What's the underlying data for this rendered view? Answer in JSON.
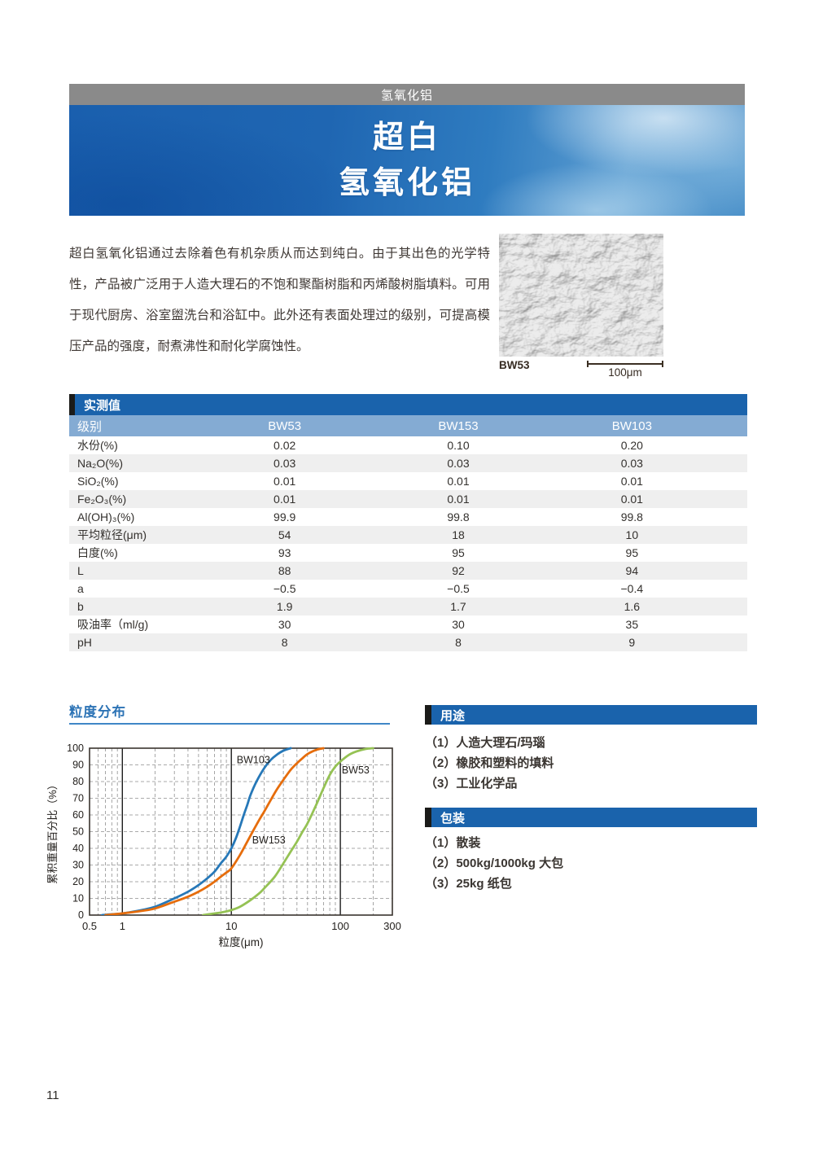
{
  "page": {
    "number": "11"
  },
  "colors": {
    "section_bar_blue": "#1a63ac",
    "grade_row_blue": "#84abd3",
    "tag_bar_gray": "#8a8a8a",
    "banner_blue": "#1f66b2",
    "title_blue": "#2c73b5",
    "row_stripe": "#efefef"
  },
  "header": {
    "tag": "氢氧化铝",
    "title_line1": "超白",
    "title_line2": "氢氧化铝"
  },
  "intro": {
    "paragraph": "超白氢氧化铝通过去除着色有机杂质从而达到纯白。由于其出色的光学特性，产品被广泛用于人造大理石的不饱和聚酯树脂和丙烯酸树脂填料。可用于现代厨房、浴室盥洗台和浴缸中。此外还有表面处理过的级别，可提高模压产品的强度，耐煮沸性和耐化学腐蚀性。",
    "figure": {
      "label": "BW53",
      "scale": "100μm"
    }
  },
  "table": {
    "title": "实测值",
    "grade_label": "级别",
    "columns": [
      "BW53",
      "BW153",
      "BW103"
    ],
    "rows": [
      {
        "label": "水份(%)",
        "values": [
          "0.02",
          "0.10",
          "0.20"
        ]
      },
      {
        "label": "Na₂O(%)",
        "values": [
          "0.03",
          "0.03",
          "0.03"
        ]
      },
      {
        "label": "SiO₂(%)",
        "values": [
          "0.01",
          "0.01",
          "0.01"
        ]
      },
      {
        "label": "Fe₂O₃(%)",
        "values": [
          "0.01",
          "0.01",
          "0.01"
        ]
      },
      {
        "label": "Al(OH)₃(%)",
        "values": [
          "99.9",
          "99.8",
          "99.8"
        ]
      },
      {
        "label": "平均粒径(μm)",
        "values": [
          "54",
          "18",
          "10"
        ]
      },
      {
        "label": "白度(%)",
        "values": [
          "93",
          "95",
          "95"
        ]
      },
      {
        "label": "L",
        "values": [
          "88",
          "92",
          "94"
        ]
      },
      {
        "label": "a",
        "values": [
          "−0.5",
          "−0.5",
          "−0.4"
        ]
      },
      {
        "label": "b",
        "values": [
          "1.9",
          "1.7",
          "1.6"
        ]
      },
      {
        "label": "吸油率（ml/g)",
        "values": [
          "30",
          "30",
          "35"
        ]
      },
      {
        "label": "pH",
        "values": [
          "8",
          "8",
          "9"
        ]
      }
    ]
  },
  "sections": {
    "distribution_title": "粒度分布",
    "uses": {
      "title": "用途",
      "items": [
        "（1）人造大理石/玛瑙",
        "（2）橡胶和塑料的填料",
        "（3）工业化学品"
      ]
    },
    "packaging": {
      "title": "包装",
      "items": [
        "（1）散装",
        "（2）500kg/1000kg 大包",
        "（3）25kg 纸包"
      ]
    }
  },
  "chart_data": {
    "type": "line",
    "title": "粒度分布",
    "xlabel": "粒度(μm)",
    "ylabel": "累积重量百分比（%）",
    "x_scale": "log",
    "xlim": [
      0.5,
      300
    ],
    "ylim": [
      0,
      100
    ],
    "x_major_ticks": [
      0.5,
      1,
      10,
      100,
      300
    ],
    "x_solid_gridlines": [
      1,
      10,
      100
    ],
    "y_ticks": [
      0,
      10,
      20,
      30,
      40,
      50,
      60,
      70,
      80,
      90,
      100
    ],
    "grid": "log minor dashed verticals + dashed horizontals every 10",
    "legend_position": "inline-labels",
    "series": [
      {
        "name": "BW103",
        "color": "#2678b8",
        "label_at": {
          "x": 11.2,
          "y": 91
        },
        "points": [
          [
            0.65,
            0
          ],
          [
            0.8,
            0.5
          ],
          [
            1,
            1
          ],
          [
            1.5,
            3
          ],
          [
            2,
            5
          ],
          [
            3,
            10
          ],
          [
            4,
            14
          ],
          [
            5,
            18
          ],
          [
            6,
            22
          ],
          [
            7,
            26
          ],
          [
            8,
            31
          ],
          [
            9,
            35
          ],
          [
            10,
            40
          ],
          [
            11,
            46
          ],
          [
            12,
            53
          ],
          [
            13,
            60
          ],
          [
            14,
            66
          ],
          [
            15,
            72
          ],
          [
            17,
            80
          ],
          [
            20,
            88
          ],
          [
            23,
            93
          ],
          [
            26,
            96
          ],
          [
            30,
            98.5
          ],
          [
            35,
            100
          ]
        ]
      },
      {
        "name": "BW153",
        "color": "#e66d0c",
        "label_at": {
          "x": 15.5,
          "y": 43
        },
        "points": [
          [
            0.7,
            0
          ],
          [
            1,
            1
          ],
          [
            1.5,
            2.5
          ],
          [
            2,
            4
          ],
          [
            3,
            8
          ],
          [
            4,
            11
          ],
          [
            5,
            14
          ],
          [
            6,
            17
          ],
          [
            7,
            20
          ],
          [
            8,
            23
          ],
          [
            9,
            25.5
          ],
          [
            10,
            28
          ],
          [
            12,
            36
          ],
          [
            14,
            44
          ],
          [
            16,
            51
          ],
          [
            18,
            57
          ],
          [
            20,
            62
          ],
          [
            23,
            69
          ],
          [
            26,
            75
          ],
          [
            30,
            81
          ],
          [
            35,
            87
          ],
          [
            40,
            91
          ],
          [
            45,
            94
          ],
          [
            50,
            96.5
          ],
          [
            60,
            99
          ],
          [
            70,
            100
          ]
        ]
      },
      {
        "name": "BW53",
        "color": "#95c254",
        "label_at": {
          "x": 103,
          "y": 85
        },
        "points": [
          [
            5.5,
            0
          ],
          [
            7,
            1
          ],
          [
            8,
            1.5
          ],
          [
            10,
            3
          ],
          [
            12,
            5
          ],
          [
            15,
            9
          ],
          [
            18,
            13
          ],
          [
            20,
            16
          ],
          [
            25,
            23
          ],
          [
            30,
            31
          ],
          [
            35,
            38
          ],
          [
            40,
            44
          ],
          [
            45,
            50
          ],
          [
            50,
            55
          ],
          [
            60,
            66
          ],
          [
            70,
            76
          ],
          [
            80,
            84
          ],
          [
            90,
            89
          ],
          [
            100,
            92
          ],
          [
            120,
            96
          ],
          [
            140,
            98
          ],
          [
            170,
            99.5
          ],
          [
            200,
            100
          ]
        ]
      }
    ]
  }
}
